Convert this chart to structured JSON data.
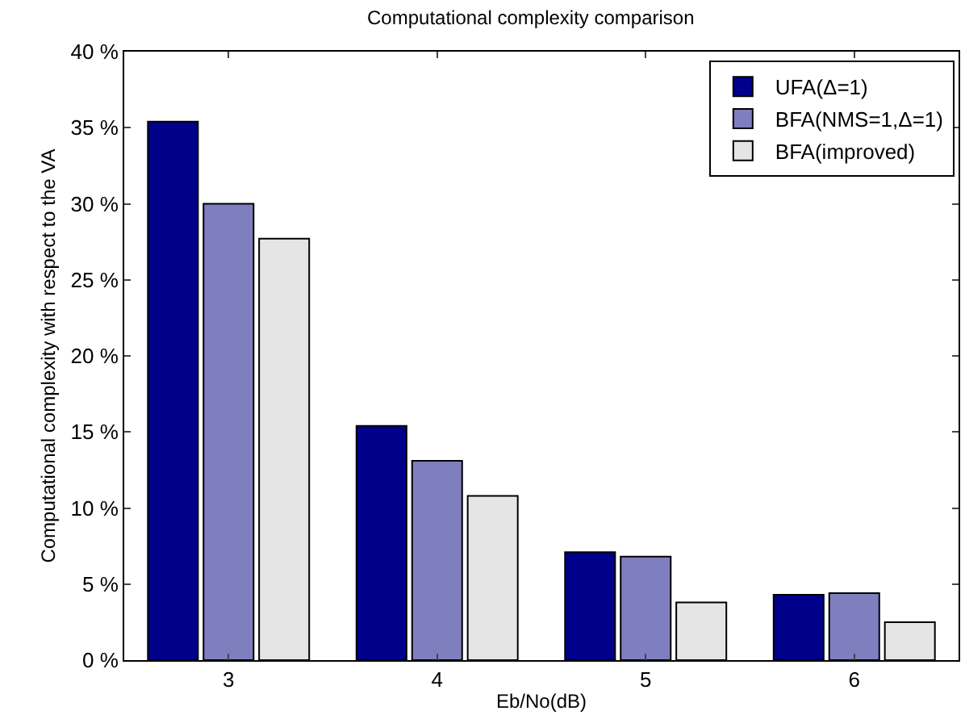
{
  "chart_data": {
    "type": "bar",
    "title": "Computational complexity comparison",
    "xlabel": "Eb/No(dB)",
    "ylabel": "Computational complexity with respect to the VA",
    "categories": [
      "3",
      "4",
      "5",
      "6"
    ],
    "series": [
      {
        "name": "UFA(Δ=1)",
        "color": "#00008b",
        "values": [
          35.4,
          15.4,
          7.1,
          4.3
        ]
      },
      {
        "name": "BFA(NMS=1,Δ=1)",
        "color": "#7f7fbf",
        "values": [
          30.0,
          13.1,
          6.8,
          4.4
        ]
      },
      {
        "name": "BFA(improved)",
        "color": "#e5e5e5",
        "values": [
          27.7,
          10.8,
          3.8,
          2.5
        ]
      }
    ],
    "ylim": [
      0,
      40
    ],
    "yticks": [
      {
        "value": 0,
        "label": "0 %"
      },
      {
        "value": 5,
        "label": "5 %"
      },
      {
        "value": 10,
        "label": "10 %"
      },
      {
        "value": 15,
        "label": "15 %"
      },
      {
        "value": 20,
        "label": "20 %"
      },
      {
        "value": 25,
        "label": "25 %"
      },
      {
        "value": 30,
        "label": "30 %"
      },
      {
        "value": 35,
        "label": "35 %"
      },
      {
        "value": 40,
        "label": "40 %"
      }
    ],
    "legend": "top right"
  }
}
